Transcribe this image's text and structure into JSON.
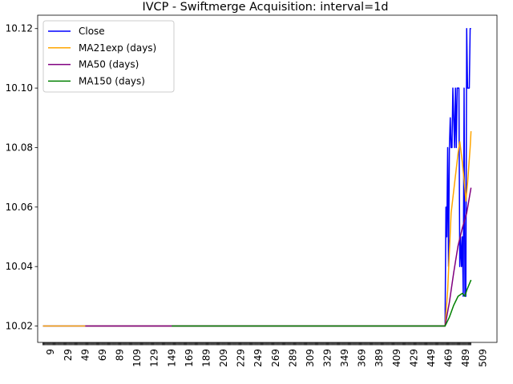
{
  "chart_data": {
    "type": "line",
    "title": "IVCP - Swiftmerge Acquisition: interval=1d",
    "xlabel": "",
    "ylabel": "",
    "xlim": [
      -6,
      525
    ],
    "ylim": [
      10.0145,
      10.1245
    ],
    "yticks": [
      10.02,
      10.04,
      10.06,
      10.08,
      10.1,
      10.12
    ],
    "ytick_labels": [
      "10.02",
      "10.04",
      "10.06",
      "10.08",
      "10.10",
      "10.12"
    ],
    "xticks": [
      9,
      29,
      49,
      69,
      89,
      109,
      129,
      149,
      169,
      189,
      209,
      229,
      249,
      269,
      289,
      309,
      329,
      349,
      369,
      389,
      409,
      429,
      449,
      469,
      489,
      509
    ],
    "grid": false,
    "legend_position": "top-left",
    "series": [
      {
        "name": "Close",
        "color": "#0000ff",
        "points": [
          [
            0,
            10.02
          ],
          [
            465,
            10.02
          ],
          [
            466,
            10.06
          ],
          [
            467,
            10.05
          ],
          [
            468,
            10.08
          ],
          [
            469,
            10.04
          ],
          [
            470,
            10.08
          ],
          [
            471,
            10.09
          ],
          [
            472,
            10.08
          ],
          [
            473,
            10.08
          ],
          [
            474,
            10.1
          ],
          [
            475,
            10.09
          ],
          [
            476,
            10.08
          ],
          [
            477,
            10.1
          ],
          [
            478,
            10.08
          ],
          [
            479,
            10.1
          ],
          [
            480,
            10.1
          ],
          [
            481,
            10.1
          ],
          [
            482,
            10.04
          ],
          [
            483,
            10.05
          ],
          [
            484,
            10.04
          ],
          [
            485,
            10.05
          ],
          [
            486,
            10.03
          ],
          [
            487,
            10.1
          ],
          [
            488,
            10.03
          ],
          [
            489,
            10.03
          ],
          [
            490,
            10.12
          ],
          [
            491,
            10.1
          ],
          [
            492,
            10.1
          ],
          [
            493,
            10.1
          ],
          [
            494,
            10.12
          ],
          [
            495,
            10.12
          ]
        ]
      },
      {
        "name": "MA21exp (days)",
        "color": "#ffa500",
        "points": [
          [
            0,
            10.02
          ],
          [
            465,
            10.02
          ],
          [
            468,
            10.032
          ],
          [
            472,
            10.058
          ],
          [
            476,
            10.068
          ],
          [
            480,
            10.078
          ],
          [
            482,
            10.082
          ],
          [
            485,
            10.075
          ],
          [
            488,
            10.066
          ],
          [
            489,
            10.062
          ],
          [
            491,
            10.068
          ],
          [
            494,
            10.08
          ],
          [
            495,
            10.0855
          ]
        ]
      },
      {
        "name": "MA50 (days)",
        "color": "#800080",
        "points": [
          [
            49,
            10.02
          ],
          [
            465,
            10.02
          ],
          [
            470,
            10.028
          ],
          [
            475,
            10.038
          ],
          [
            480,
            10.047
          ],
          [
            485,
            10.053
          ],
          [
            490,
            10.058
          ],
          [
            495,
            10.0665
          ]
        ]
      },
      {
        "name": "MA150 (days)",
        "color": "#008000",
        "points": [
          [
            149,
            10.02
          ],
          [
            465,
            10.02
          ],
          [
            470,
            10.023
          ],
          [
            475,
            10.027
          ],
          [
            480,
            10.03
          ],
          [
            485,
            10.031
          ],
          [
            488,
            10.03
          ],
          [
            490,
            10.032
          ],
          [
            495,
            10.0355
          ]
        ]
      }
    ]
  }
}
